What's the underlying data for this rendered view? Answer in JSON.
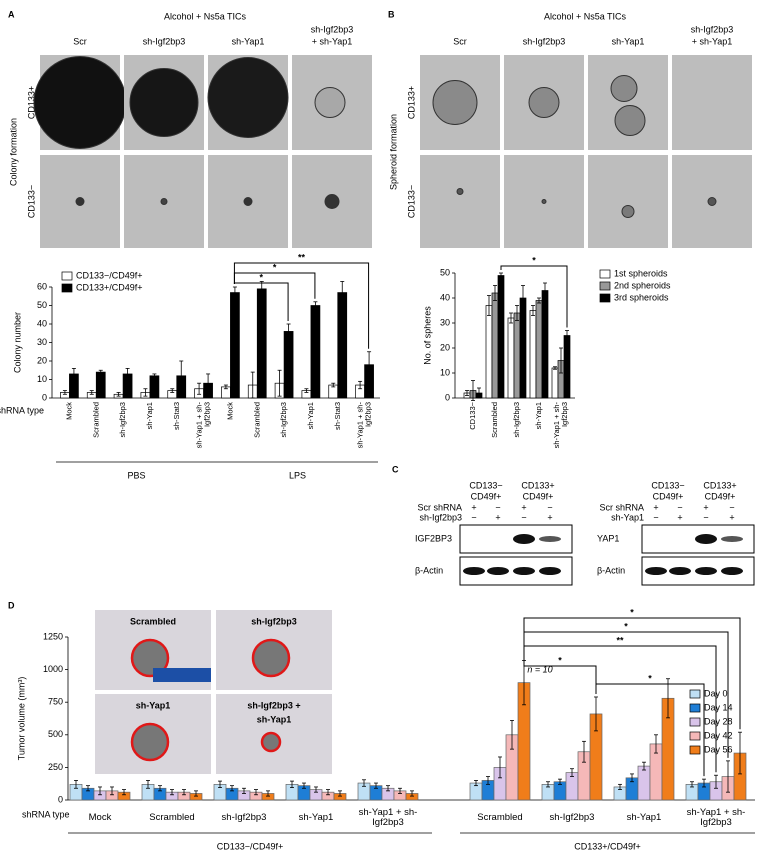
{
  "panels": {
    "A": {
      "label": "A",
      "title": "Alcohol + Ns5a TICs",
      "columns": [
        [
          "Scr"
        ],
        [
          "sh-Igf2bp3"
        ],
        [
          "sh-Yap1"
        ],
        [
          "sh-Igf2bp3",
          "+ sh-Yap1"
        ]
      ],
      "rows": [
        "CD133+",
        "CD133−"
      ],
      "side_label": "Colony formation"
    },
    "B": {
      "label": "B",
      "title": "Alcohol + Ns5a TICs",
      "columns": [
        [
          "Scr"
        ],
        [
          "sh-Igf2bp3"
        ],
        [
          "sh-Yap1"
        ],
        [
          "sh-Igf2bp3",
          "+ sh-Yap1"
        ]
      ],
      "rows": [
        "CD133+",
        "CD133−"
      ],
      "side_label": "Spheroid formation"
    },
    "C": {
      "label": "C",
      "blots": [
        {
          "col_headers": [
            [
              "CD133−",
              "CD49f+"
            ],
            [
              "CD133+",
              "CD49f+"
            ]
          ],
          "row_labels": [
            "Scr shRNA",
            "sh-Igf2bp3"
          ],
          "signs": [
            [
              "+",
              "−",
              "+",
              "−"
            ],
            [
              "−",
              "+",
              "−",
              "+"
            ]
          ],
          "bands": [
            "IGF2BP3",
            "β-Actin"
          ]
        },
        {
          "col_headers": [
            [
              "CD133−",
              "CD49f+"
            ],
            [
              "CD133+",
              "CD49f+"
            ]
          ],
          "row_labels": [
            "Scr shRNA",
            "sh-Yap1"
          ],
          "signs": [
            [
              "+",
              "−",
              "+",
              "−"
            ],
            [
              "−",
              "+",
              "−",
              "+"
            ]
          ],
          "bands": [
            "YAP1",
            "β-Actin"
          ]
        }
      ]
    },
    "D": {
      "label": "D",
      "photo_labels": [
        [
          "Scrambled"
        ],
        [
          "sh-Igf2bp3"
        ],
        [
          "sh-Yap1"
        ],
        [
          "sh-Igf2bp3 +",
          "sh-Yap1"
        ]
      ],
      "note": "n = 10"
    }
  },
  "chart_data": [
    {
      "type": "bar",
      "y_label": "Colony number",
      "x_label": "shRNA type",
      "categories": [
        "Mock",
        "Scrambled",
        "sh-Igf2bp3",
        "sh-Yap1",
        "sh-Stat3",
        "sh-Yap1 + sh-Igf2bp3",
        "Mock",
        "Scrambled",
        "sh-Igf2bp3",
        "sh-Yap1",
        "sh-Stat3",
        "sh-Yap1 + sh-Igf2bp3"
      ],
      "groups": [
        "PBS",
        "LPS"
      ],
      "series": [
        {
          "name": "CD133−/CD49f+",
          "color": "#ffffff",
          "values": [
            3,
            3,
            2,
            3,
            4,
            5,
            6,
            7,
            8,
            4,
            7,
            7
          ],
          "errors": [
            1,
            1,
            1,
            2,
            1,
            3,
            1,
            7,
            7,
            1,
            1,
            2
          ]
        },
        {
          "name": "CD133+/CD49f+",
          "color": "#000000",
          "values": [
            13,
            14,
            13,
            12,
            12,
            8,
            57,
            59,
            36,
            50,
            57,
            18
          ],
          "errors": [
            3,
            1,
            3,
            1,
            8,
            5,
            3,
            4,
            4,
            2,
            6,
            7
          ]
        }
      ],
      "ylim": [
        0,
        60
      ],
      "yticks": [
        0,
        10,
        20,
        30,
        40,
        50,
        60
      ],
      "legend": "upper left",
      "annotations": [
        "*",
        "*",
        "**"
      ]
    },
    {
      "type": "bar",
      "y_label": "No. of spheres",
      "categories": [
        "CD133−",
        "Scrambled",
        "sh-Igf2bp3",
        "sh-Yap1",
        "sh-Yap1 + sh-Igf2bp3"
      ],
      "series": [
        {
          "name": "1st spheroids",
          "color": "#ffffff",
          "values": [
            2,
            37,
            32,
            35,
            12
          ],
          "errors": [
            1,
            4,
            2,
            2,
            0.5
          ]
        },
        {
          "name": "2nd spheroids",
          "color": "#999999",
          "values": [
            3,
            42,
            34,
            39,
            15
          ],
          "errors": [
            4,
            3,
            3,
            1,
            5
          ]
        },
        {
          "name": "3rd spheroids",
          "color": "#000000",
          "values": [
            2,
            49,
            40,
            43,
            25
          ],
          "errors": [
            2,
            1,
            5,
            3,
            2
          ]
        }
      ],
      "ylim": [
        0,
        50
      ],
      "yticks": [
        0,
        10,
        20,
        30,
        40,
        50
      ],
      "legend": "upper right",
      "annotations": [
        "*"
      ]
    },
    {
      "type": "bar",
      "y_label": "Tumor volume (mm³)",
      "x_label": "shRNA type",
      "categories": [
        "Mock",
        "Scrambled",
        "sh-Igf2bp3",
        "sh-Yap1",
        "sh-Yap1 + sh-Igf2bp3",
        "Scrambled",
        "sh-Igf2bp3",
        "sh-Yap1",
        "sh-Yap1 + sh-Igf2bp3"
      ],
      "groups": [
        "CD133−/CD49f+",
        "CD133+/CD49f+"
      ],
      "series": [
        {
          "name": "Day 0",
          "color": "#bfe0f5",
          "values": [
            120,
            120,
            120,
            120,
            130,
            130,
            120,
            100,
            120
          ],
          "errors": [
            30,
            30,
            25,
            25,
            25,
            20,
            20,
            20,
            20
          ]
        },
        {
          "name": "Day 14",
          "color": "#1e7ed6",
          "values": [
            90,
            90,
            90,
            110,
            110,
            150,
            140,
            170,
            130
          ],
          "errors": [
            20,
            20,
            20,
            20,
            20,
            30,
            20,
            30,
            30
          ]
        },
        {
          "name": "Day 28",
          "color": "#d9c4ea",
          "values": [
            70,
            60,
            70,
            80,
            90,
            250,
            210,
            260,
            140
          ],
          "errors": [
            30,
            20,
            20,
            20,
            20,
            80,
            30,
            30,
            50
          ]
        },
        {
          "name": "Day 42",
          "color": "#f5b8b8",
          "values": [
            70,
            60,
            60,
            60,
            70,
            500,
            370,
            430,
            180
          ],
          "errors": [
            30,
            20,
            20,
            20,
            20,
            110,
            80,
            70,
            120
          ]
        },
        {
          "name": "Day 56",
          "color": "#f07d1a",
          "values": [
            60,
            50,
            50,
            50,
            50,
            900,
            660,
            780,
            360
          ],
          "errors": [
            20,
            20,
            20,
            20,
            20,
            170,
            130,
            150,
            160
          ]
        }
      ],
      "ylim": [
        0,
        1250
      ],
      "yticks": [
        0,
        250,
        500,
        750,
        1000,
        1250
      ],
      "legend": "right",
      "annotations": [
        "*",
        "*",
        "**",
        "*",
        "*"
      ]
    }
  ]
}
